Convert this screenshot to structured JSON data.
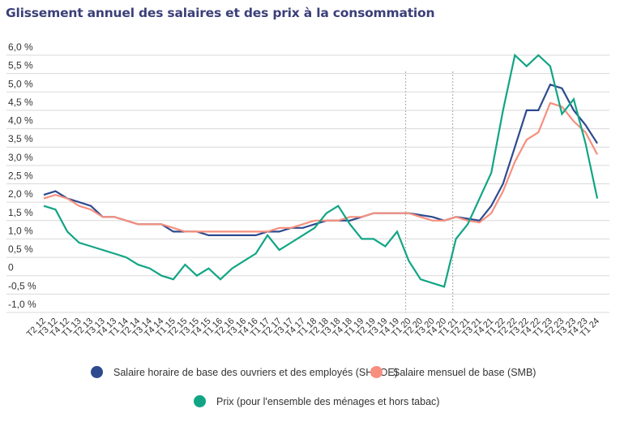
{
  "chart_data": {
    "type": "line",
    "title": "Glissement annuel des salaires et des prix à la consommation",
    "xlabel": "",
    "ylabel": "",
    "ylim": [
      -1.0,
      6.0
    ],
    "yticks": [
      {
        "value": 6.0,
        "label": "6,0 %"
      },
      {
        "value": 5.5,
        "label": "5,5 %"
      },
      {
        "value": 5.0,
        "label": "5,0 %"
      },
      {
        "value": 4.5,
        "label": "4,5 %"
      },
      {
        "value": 4.0,
        "label": "4,0 %"
      },
      {
        "value": 3.5,
        "label": "3,5 %"
      },
      {
        "value": 3.0,
        "label": "3,0 %"
      },
      {
        "value": 2.5,
        "label": "2,5 %"
      },
      {
        "value": 2.0,
        "label": "2,0 %"
      },
      {
        "value": 1.5,
        "label": "1,5 %"
      },
      {
        "value": 1.0,
        "label": "1,0 %"
      },
      {
        "value": 0.5,
        "label": "0,5 %"
      },
      {
        "value": 0,
        "label": "0"
      },
      {
        "value": -0.5,
        "label": "-0,5 %"
      },
      {
        "value": -1.0,
        "label": "-1,0 %"
      }
    ],
    "grid": true,
    "legend_position": "bottom",
    "categories": [
      "T2 12",
      "T3 12",
      "T4 12",
      "T1 13",
      "T2 13",
      "T3 13",
      "T4 13",
      "T1 14",
      "T2 14",
      "T3 14",
      "T4 14",
      "T1 15",
      "T2 15",
      "T3 15",
      "T4 15",
      "T1 16",
      "T2 16",
      "T3 16",
      "T4 16",
      "T1 17",
      "T2 17",
      "T3 17",
      "T4 17",
      "T1 18",
      "T2 18",
      "T3 18",
      "T4 18",
      "T1 19",
      "T2 19",
      "T3 19",
      "T4 19",
      "T1 20",
      "T2 20",
      "T3 20",
      "T4 20",
      "T1 21",
      "T2 21",
      "T3 21",
      "T4 21",
      "T1 22",
      "T2 22",
      "T3 22",
      "T4 22",
      "T1 23",
      "T2 23",
      "T3 23",
      "T4 23",
      "T1 24"
    ],
    "vertical_markers": [
      "T1 20",
      "T1 21"
    ],
    "series": [
      {
        "name": "Salaire horaire de base des ouvriers et des employés (SHBOE)",
        "color": "#2e4a8e",
        "values": [
          2.2,
          2.3,
          2.1,
          2.0,
          1.9,
          1.6,
          1.6,
          1.5,
          1.4,
          1.4,
          1.4,
          1.2,
          1.2,
          1.2,
          1.1,
          1.1,
          1.1,
          1.1,
          1.1,
          1.2,
          1.2,
          1.3,
          1.3,
          1.4,
          1.5,
          1.5,
          1.5,
          1.6,
          1.7,
          1.7,
          1.7,
          1.7,
          1.65,
          1.6,
          1.5,
          1.6,
          1.55,
          1.5,
          1.9,
          2.5,
          3.5,
          4.5,
          4.5,
          5.2,
          5.1,
          4.5,
          4.1,
          3.6
        ]
      },
      {
        "name": "Salaire mensuel de base (SMB)",
        "color": "#f78f7e",
        "values": [
          2.1,
          2.2,
          2.1,
          1.9,
          1.8,
          1.6,
          1.6,
          1.5,
          1.4,
          1.4,
          1.4,
          1.3,
          1.2,
          1.2,
          1.2,
          1.2,
          1.2,
          1.2,
          1.2,
          1.2,
          1.3,
          1.3,
          1.4,
          1.5,
          1.5,
          1.5,
          1.6,
          1.6,
          1.7,
          1.7,
          1.7,
          1.7,
          1.6,
          1.5,
          1.5,
          1.6,
          1.5,
          1.45,
          1.7,
          2.3,
          3.1,
          3.7,
          3.9,
          4.7,
          4.6,
          4.2,
          3.9,
          3.3
        ]
      },
      {
        "name": "Prix (pour l'ensemble des ménages et hors tabac)",
        "color": "#11a585",
        "values": [
          1.9,
          1.8,
          1.2,
          0.9,
          0.8,
          0.7,
          0.6,
          0.5,
          0.3,
          0.2,
          0.0,
          -0.1,
          0.3,
          0.0,
          0.2,
          -0.1,
          0.2,
          0.4,
          0.6,
          1.1,
          0.7,
          0.9,
          1.1,
          1.3,
          1.7,
          1.9,
          1.4,
          1.0,
          1.0,
          0.8,
          1.2,
          0.4,
          -0.1,
          -0.2,
          -0.3,
          1.0,
          1.4,
          2.1,
          2.8,
          4.5,
          6.0,
          5.7,
          6.0,
          5.7,
          4.4,
          4.8,
          3.6,
          2.1
        ]
      }
    ]
  }
}
